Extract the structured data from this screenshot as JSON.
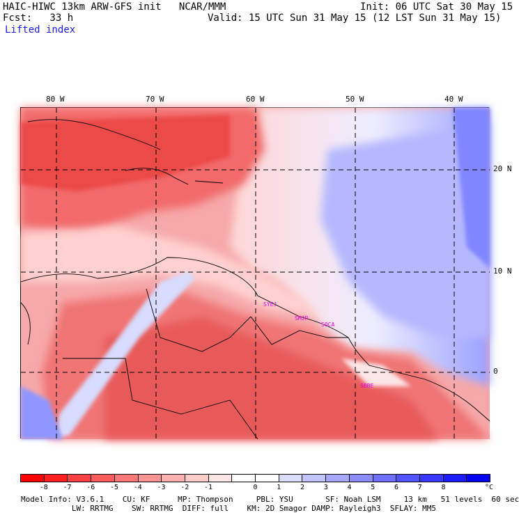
{
  "header": {
    "title": "HAIC-HIWC 13km ARW-GFS init   NCAR/MMM",
    "init": "Init: 06 UTC Sat 30 May 15",
    "fcst": "Fcst:   33 h",
    "valid": "Valid: 15 UTC Sun 31 May 15 (12 LST Sun 31 May 15)",
    "field": "Lifted index"
  },
  "map": {
    "lon_labels": [
      "80 W",
      "70 W",
      "60 W",
      "50 W",
      "40 W"
    ],
    "lat_labels": [
      "20 N",
      "10 N",
      "0"
    ],
    "stations": [
      "SYEJ",
      "SMJP",
      "SOCA",
      "SBBE"
    ],
    "colors": {
      "unstable": "#ff0000",
      "neutral": "#ffffff",
      "stable": "#0000ff"
    }
  },
  "colorbar": {
    "colors": [
      "#ff0000",
      "#ff2020",
      "#ff4040",
      "#ff5c5c",
      "#ff7878",
      "#ff9494",
      "#ffb0b0",
      "#ffcccc",
      "#ffe6e6",
      "#ffffff",
      "#ffffff",
      "#dcdcff",
      "#c4c4ff",
      "#a8a8ff",
      "#8c8cff",
      "#7070ff",
      "#5454ff",
      "#3838ff",
      "#1c1cff",
      "#0000f0"
    ],
    "ticks": [
      "-8",
      "-7",
      "-6",
      "-5",
      "-4",
      "-3",
      "-2",
      "-1",
      "0",
      "1",
      "2",
      "3",
      "4",
      "5",
      "6",
      "7",
      "8"
    ],
    "unit": "°C"
  },
  "footer": {
    "line1": "Model Info: V3.6.1    CU: KF      MP: Thompson     PBL: YSU       SF: Noah LSM     13 km   51 levels  60 sec",
    "line2": "           LW: RRTMG    SW: RRTMG  DIFF: full    KM: 2D Smagor DAMP: Rayleigh3  SFLAY: MM5"
  }
}
